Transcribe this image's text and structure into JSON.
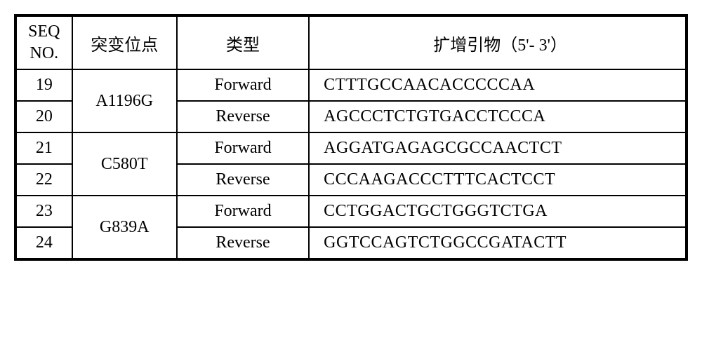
{
  "headers": {
    "seq_no_line1": "SEQ",
    "seq_no_line2": "NO.",
    "mutation": "突变位点",
    "type": "类型",
    "primer": "扩增引物（5'- 3'）"
  },
  "rows": [
    {
      "seq": "19",
      "mutation": "A1196G",
      "type": "Forward",
      "primer": "CTTTGCCAACACCCCCAA",
      "mutation_rowspan": 2
    },
    {
      "seq": "20",
      "type": "Reverse",
      "primer": "AGCCCTCTGTGACCTCCCA"
    },
    {
      "seq": "21",
      "mutation": "C580T",
      "type": "Forward",
      "primer": "AGGATGAGAGCGCCAACTCT",
      "mutation_rowspan": 2
    },
    {
      "seq": "22",
      "type": "Reverse",
      "primer": "CCCAAGACCCTTTCACTCCT"
    },
    {
      "seq": "23",
      "mutation": "G839A",
      "type": "Forward",
      "primer": "CCTGGACTGCTGGGTCTGA",
      "mutation_rowspan": 2
    },
    {
      "seq": "24",
      "type": "Reverse",
      "primer": "GGTCCAGTCTGGCCGATACTT"
    }
  ],
  "styling": {
    "border_color": "#000000",
    "border_width": 2,
    "background_color": "#ffffff",
    "text_color": "#000000",
    "font_size": 24,
    "font_family": "Times New Roman"
  }
}
